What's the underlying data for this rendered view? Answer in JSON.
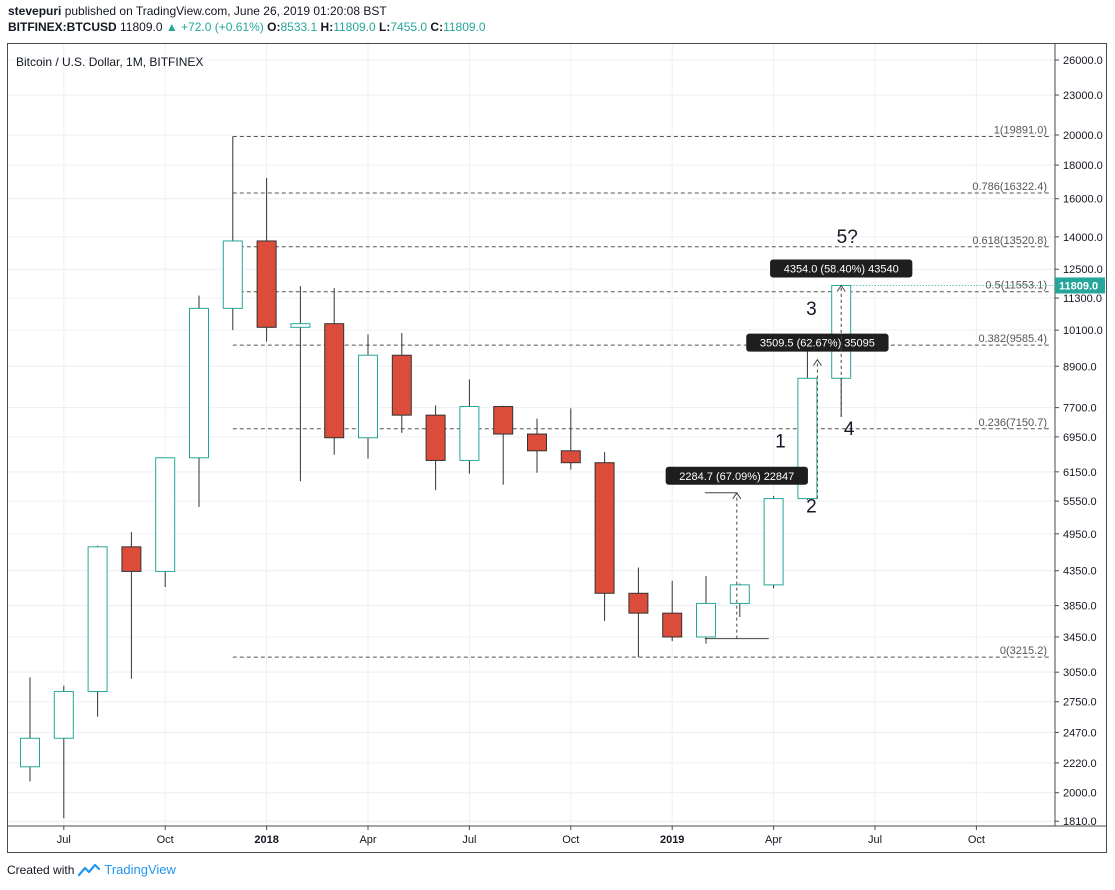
{
  "header": {
    "publisher": "stevepuri",
    "published_text": "published on TradingView.com, June 26, 2019 01:20:08 BST",
    "symbol": "BITFINEX:BTCUSD",
    "last": "11809.0",
    "change": "▲ +72.0 (+0.61%)",
    "o_label": "O:",
    "o_value": "8533.1",
    "h_label": "H:",
    "h_value": "11809.0",
    "l_label": "L:",
    "l_value": "7455.0",
    "c_label": "C:",
    "c_value": "11809.0"
  },
  "colors": {
    "up": "#26a69a",
    "up_fill": "#ffffff",
    "down": "#dc4c3a",
    "wick": "#333333",
    "accent_green": "#26a69a"
  },
  "footer": {
    "created_with": "Created with",
    "brand": "TradingView"
  },
  "chart_data": {
    "type": "candlestick",
    "title": "Bitcoin / U.S. Dollar, 1M, BITFINEX",
    "price_scale": "log",
    "ylim": [
      1780,
      27500
    ],
    "y_ticks": [
      1810,
      2000,
      2220,
      2470,
      2750,
      3050,
      3450,
      3850,
      4350,
      4950,
      5550,
      6150,
      6950,
      7700,
      8900,
      10100,
      11300,
      12500,
      14000,
      16000,
      18000,
      20000,
      23000,
      26000
    ],
    "y_tick_labels": [
      "1810.0",
      "2000.0",
      "2220.0",
      "2470.0",
      "2750.0",
      "3050.0",
      "3450.0",
      "3850.0",
      "4350.0",
      "4950.0",
      "5550.0",
      "6150.0",
      "6950.0",
      "7700.0",
      "8900.0",
      "10100.0",
      "11300.0",
      "12500.0",
      "14000.0",
      "16000.0",
      "18000.0",
      "20000.0",
      "23000.0",
      "26000.0"
    ],
    "x_ticks": [
      {
        "label": "Jul",
        "index": 1,
        "bold": false
      },
      {
        "label": "Oct",
        "index": 4,
        "bold": false
      },
      {
        "label": "2018",
        "index": 7,
        "bold": true
      },
      {
        "label": "Apr",
        "index": 10,
        "bold": false
      },
      {
        "label": "Jul",
        "index": 13,
        "bold": false
      },
      {
        "label": "Oct",
        "index": 16,
        "bold": false
      },
      {
        "label": "2019",
        "index": 19,
        "bold": true
      },
      {
        "label": "Apr",
        "index": 22,
        "bold": false
      },
      {
        "label": "Jul",
        "index": 25,
        "bold": false
      },
      {
        "label": "Oct",
        "index": 28,
        "bold": false
      }
    ],
    "candles": [
      {
        "date": "2017-06",
        "o": 2190,
        "h": 2995,
        "l": 2080,
        "c": 2420
      },
      {
        "date": "2017-07",
        "o": 2420,
        "h": 2910,
        "l": 1830,
        "c": 2850
      },
      {
        "date": "2017-08",
        "o": 2850,
        "h": 4750,
        "l": 2610,
        "c": 4730
      },
      {
        "date": "2017-09",
        "o": 4730,
        "h": 4980,
        "l": 2980,
        "c": 4340
      },
      {
        "date": "2017-10",
        "o": 4340,
        "h": 6470,
        "l": 4110,
        "c": 6460
      },
      {
        "date": "2017-11",
        "o": 6460,
        "h": 11400,
        "l": 5440,
        "c": 10900
      },
      {
        "date": "2017-12",
        "o": 10900,
        "h": 19891,
        "l": 10100,
        "c": 13800
      },
      {
        "date": "2018-01",
        "o": 13800,
        "h": 17200,
        "l": 9700,
        "c": 10200
      },
      {
        "date": "2018-02",
        "o": 10200,
        "h": 11780,
        "l": 5950,
        "c": 10330
      },
      {
        "date": "2018-03",
        "o": 10330,
        "h": 11700,
        "l": 6530,
        "c": 6930
      },
      {
        "date": "2018-04",
        "o": 6930,
        "h": 9950,
        "l": 6440,
        "c": 9250
      },
      {
        "date": "2018-05",
        "o": 9250,
        "h": 10000,
        "l": 7050,
        "c": 7500
      },
      {
        "date": "2018-06",
        "o": 7500,
        "h": 7760,
        "l": 5770,
        "c": 6400
      },
      {
        "date": "2018-07",
        "o": 6400,
        "h": 8500,
        "l": 6110,
        "c": 7730
      },
      {
        "date": "2018-08",
        "o": 7730,
        "h": 7750,
        "l": 5880,
        "c": 7020
      },
      {
        "date": "2018-09",
        "o": 7020,
        "h": 7410,
        "l": 6130,
        "c": 6620
      },
      {
        "date": "2018-10",
        "o": 6620,
        "h": 7680,
        "l": 6200,
        "c": 6350
      },
      {
        "date": "2018-11",
        "o": 6350,
        "h": 6590,
        "l": 3650,
        "c": 4020
      },
      {
        "date": "2018-12",
        "o": 4020,
        "h": 4400,
        "l": 3215,
        "c": 3750
      },
      {
        "date": "2019-01",
        "o": 3750,
        "h": 4200,
        "l": 3400,
        "c": 3450
      },
      {
        "date": "2019-02",
        "o": 3450,
        "h": 4270,
        "l": 3370,
        "c": 3880
      },
      {
        "date": "2019-03",
        "o": 3880,
        "h": 4160,
        "l": 3700,
        "c": 4140
      },
      {
        "date": "2019-04",
        "o": 4140,
        "h": 5650,
        "l": 4090,
        "c": 5600
      },
      {
        "date": "2019-05",
        "o": 5600,
        "h": 9400,
        "l": 5570,
        "c": 8533.1
      },
      {
        "date": "2019-06",
        "o": 8533.1,
        "h": 11809,
        "l": 7455,
        "c": 11809
      }
    ],
    "fib_levels": [
      {
        "ratio": "1",
        "price": 19891.0,
        "label": "1(19891.0)"
      },
      {
        "ratio": "0.786",
        "price": 16322.4,
        "label": "0.786(16322.4)"
      },
      {
        "ratio": "0.618",
        "price": 13520.8,
        "label": "0.618(13520.8)"
      },
      {
        "ratio": "0.5",
        "price": 11553.1,
        "label": "0.5(11553.1)"
      },
      {
        "ratio": "0.382",
        "price": 9585.4,
        "label": "0.382(9585.4)"
      },
      {
        "ratio": "0.236",
        "price": 7150.7,
        "label": "0.236(7150.7)"
      },
      {
        "ratio": "0",
        "price": 3215.2,
        "label": "0(3215.2)"
      }
    ],
    "fib_start_index": 6,
    "price_label": "11809.0",
    "price_label_value": 11809,
    "measurements": [
      {
        "label": "2284.7 (67.09%) 22847",
        "from_index": 21,
        "from_price": 3430,
        "to_price": 5715
      },
      {
        "label": "3509.5 (62.67%) 35095",
        "from_index": 23,
        "from_price": 5600,
        "to_price": 9110
      },
      {
        "label": "4354.0 (58.40%) 43540",
        "from_index": 24,
        "from_price": 7455,
        "to_price": 11809
      }
    ],
    "wave_labels": [
      {
        "text": "1",
        "index": 23,
        "price": 6700
      },
      {
        "text": "2",
        "index": 23,
        "price": 5330
      },
      {
        "text": "3",
        "index": 23,
        "price": 10650
      },
      {
        "text": "4",
        "index": 24,
        "price": 7000
      },
      {
        "text": "5?",
        "index": 24,
        "price": 13700
      }
    ]
  }
}
